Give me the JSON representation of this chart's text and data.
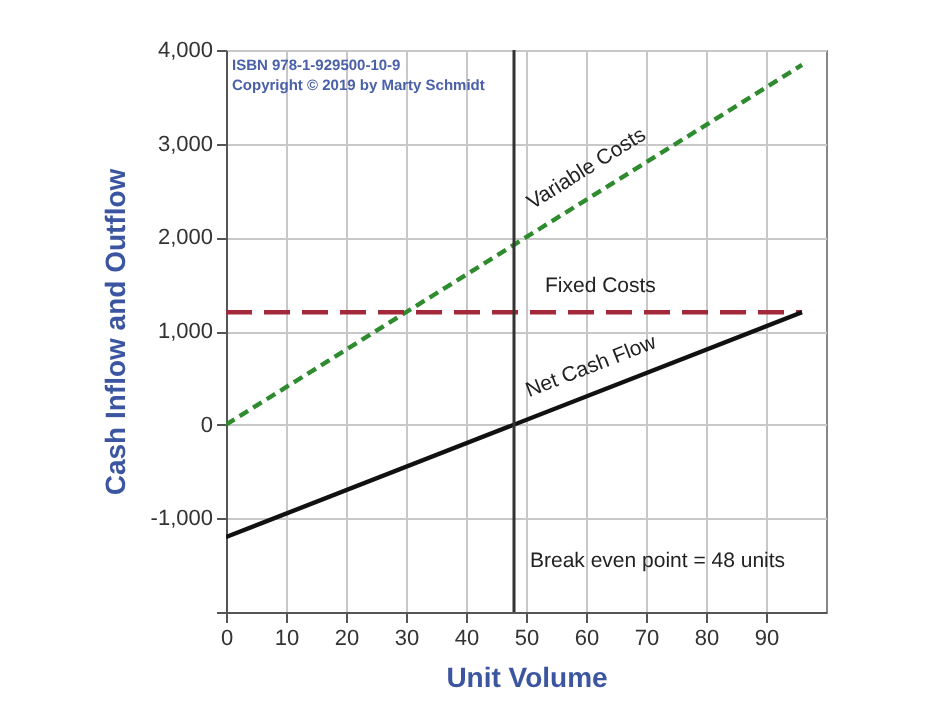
{
  "chart_data": {
    "type": "line",
    "xlabel": "Unit Volume",
    "ylabel": "Cash Inflow and Outflow",
    "xlim": [
      0,
      100
    ],
    "xticks": [
      0,
      10,
      20,
      30,
      40,
      50,
      60,
      70,
      80,
      90
    ],
    "ylim": [
      -2000,
      4000
    ],
    "yticks": [
      {
        "value": -2000,
        "label": null
      },
      {
        "value": -1000,
        "label": "-1,000"
      },
      {
        "value": 0,
        "label": "0"
      },
      {
        "value": 1000,
        "label": "1,000"
      },
      {
        "value": 2000,
        "label": "2,000"
      },
      {
        "value": 3000,
        "label": "3,000"
      },
      {
        "value": 4000,
        "label": "4,000"
      }
    ],
    "grid": true,
    "x": [
      0,
      96
    ],
    "series": [
      {
        "name": "Variable Costs",
        "color": "#2e8b2e",
        "line_style": "dashed",
        "values": [
          0,
          3840
        ]
      },
      {
        "name": "Fixed Costs",
        "color": "#a3283a",
        "line_style": "dashed",
        "values": [
          1200,
          1200
        ]
      },
      {
        "name": "Net Cash Flow",
        "color": "#111111",
        "line_style": "solid",
        "values": [
          -1200,
          1200
        ]
      }
    ],
    "ref_lines": [
      {
        "axis": "x",
        "value": 48,
        "label": "Break even point = 48 units",
        "color": "#333333"
      }
    ],
    "annotations": [
      "ISBN 978-1-929500-10-9",
      "Copyright © 2019 by Marty Schmidt"
    ]
  }
}
